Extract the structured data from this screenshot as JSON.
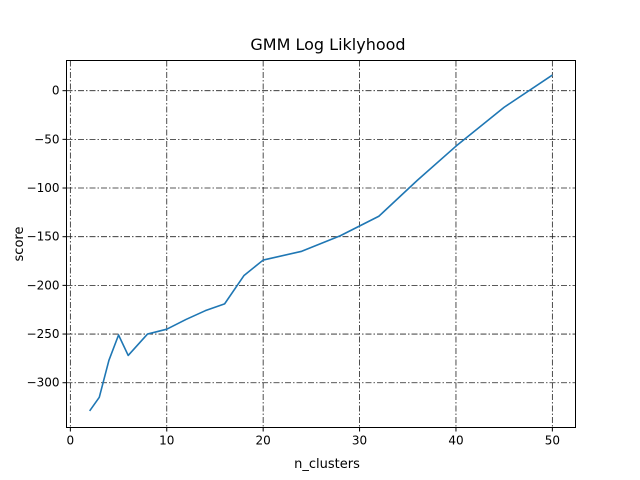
{
  "chart_data": {
    "type": "line",
    "title": "GMM Log Liklyhood",
    "xlabel": "n_clusters",
    "ylabel": "score",
    "xlim": [
      -0.4,
      52.4
    ],
    "ylim": [
      -346,
      31
    ],
    "xticks": [
      0,
      10,
      20,
      30,
      40,
      50
    ],
    "xtick_labels": [
      "0",
      "10",
      "20",
      "30",
      "40",
      "50"
    ],
    "yticks": [
      0,
      -50,
      -100,
      -150,
      -200,
      -250,
      -300
    ],
    "ytick_labels": [
      "0",
      "−50",
      "−100",
      "−150",
      "−200",
      "−250",
      "−300"
    ],
    "grid": true,
    "series": [
      {
        "color": "#1f77b4",
        "x": [
          2,
          3,
          4,
          5,
          6,
          8,
          10,
          12,
          14,
          16,
          18,
          20,
          24,
          28,
          32,
          36,
          40,
          45,
          50
        ],
        "y": [
          -329,
          -315,
          -277,
          -251,
          -272,
          -250,
          -245,
          -235,
          -226,
          -219,
          -190,
          -174,
          -165,
          -149,
          -129,
          -92,
          -57,
          -17,
          16
        ]
      }
    ]
  }
}
